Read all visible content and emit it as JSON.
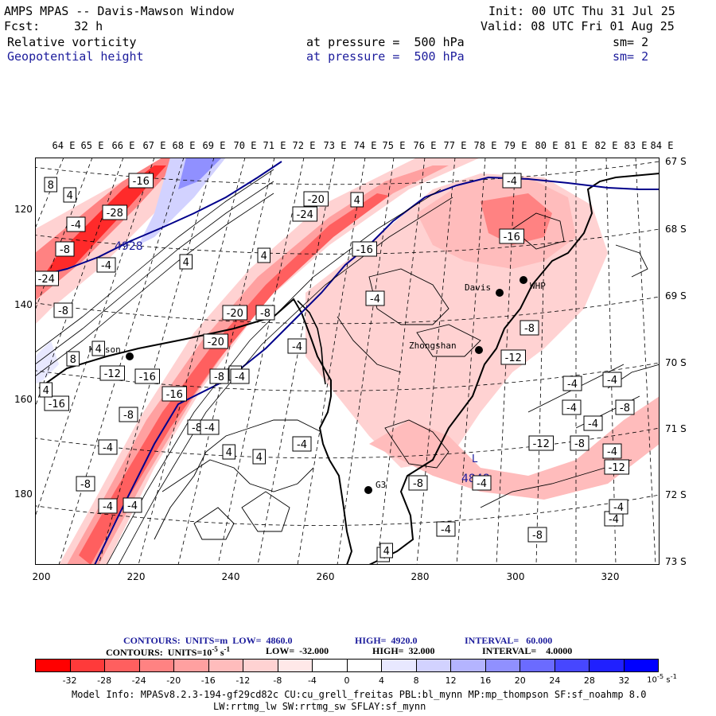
{
  "header": {
    "title": "AMPS MPAS -- Davis-Mawson Window",
    "fcst_label": "Fcst:",
    "fcst_value": "32 h",
    "init": "Init: 00 UTC Thu 31 Jul 25",
    "valid": "Valid: 08 UTC Fri 01 Aug 25",
    "field1_name": "Relative vorticity",
    "field1_level": "at pressure =  500 hPa",
    "field1_sm": "sm= 2",
    "field2_name": "Geopotential height",
    "field2_level": "at pressure =  500 hPa",
    "field2_sm": "sm= 2"
  },
  "map": {
    "top_lon_labels": [
      "64 E",
      "65 E",
      "66 E",
      "67 E",
      "68 E",
      "69 E",
      "70 E",
      "71 E",
      "72 E",
      "73 E",
      "74 E",
      "75 E",
      "76 E",
      "77 E",
      "78 E",
      "79 E",
      "80 E",
      "81 E",
      "82 E",
      "83 E",
      "84 E"
    ],
    "left_ticks": [
      "120",
      "140",
      "160",
      "180"
    ],
    "right_lat_labels": [
      "67 S",
      "68 S",
      "69 S",
      "70 S",
      "71 S",
      "72 S",
      "73 S"
    ],
    "bottom_ticks": [
      "200",
      "220",
      "240",
      "260",
      "280",
      "300",
      "320"
    ],
    "stations": [
      {
        "name": "Mawson"
      },
      {
        "name": "Davis"
      },
      {
        "name": "Zhongshan"
      },
      {
        "name": "G3"
      },
      {
        "name": "WHP"
      }
    ],
    "height_labels": [
      "4928",
      "4848"
    ],
    "low_marker": "L",
    "vort_labels": [
      "8",
      "4",
      "-16",
      "-20",
      "-4",
      "-28",
      "-8",
      "-4",
      "-24",
      "4",
      "4",
      "-8",
      "4",
      "-16",
      "-20",
      "-8",
      "-12",
      "-16",
      "-4",
      "-8",
      "-24",
      "-16",
      "-4",
      "-20",
      "4",
      "-4",
      "-8",
      "-12",
      "8",
      "4",
      "-16",
      "-16",
      "-8",
      "-4",
      "-4",
      "4",
      "-8",
      "-4",
      "-8",
      "-4",
      "-12",
      "4",
      "-4",
      "-4",
      "-8",
      "-4",
      "-4",
      "-4",
      "-12",
      "-8",
      "-4",
      "4",
      "-4",
      "-8",
      "-4",
      "-4",
      "-4",
      "-8",
      "4",
      "-4",
      "4"
    ]
  },
  "legend": {
    "contours1_prefix": "CONTOURS:  UNITS=m  LOW=  4860.0",
    "contours1_high": "HIGH=  4920.0",
    "contours1_interval": "INTERVAL=   60.000",
    "contours2_prefix": "CONTOURS:  UNITS=10",
    "contours2_exp": "-5",
    "contours2_units_tail": " s",
    "contours2_exp2": "-1",
    "contours2_low": "LOW=  -32.000",
    "contours2_high": "HIGH=  32.000",
    "contours2_interval": "INTERVAL=    4.0000",
    "colorbar_labels": [
      "-32",
      "-28",
      "-24",
      "-20",
      "-16",
      "-12",
      "-8",
      "-4",
      "0",
      "4",
      "8",
      "12",
      "16",
      "20",
      "24",
      "28",
      "32"
    ],
    "colorbar_unit": "10",
    "colorbar_unit_exp": "-5",
    "colorbar_unit_tail": " s",
    "colorbar_unit_exp2": "-1",
    "colors": [
      "#ff0000",
      "#ff3a3a",
      "#ff5f5f",
      "#ff8282",
      "#ffa0a0",
      "#ffbcbc",
      "#ffd2d2",
      "#ffe8e8",
      "#ffffff",
      "#ffffff",
      "#e8e8ff",
      "#d2d2ff",
      "#b4b4ff",
      "#9090ff",
      "#6b6bff",
      "#4747ff",
      "#2020ff",
      "#0000ff"
    ]
  },
  "model_info": {
    "line1": "Model Info: MPASv8.2.3-194-gf29cd82c CU:cu_grell_freitas PBL:bl_mynn MP:mp_thompson SF:sf_noahmp 8.0",
    "line2": "LW:rrtmg_lw SW:rrtmg_sw SFLAY:sf_mynn"
  }
}
